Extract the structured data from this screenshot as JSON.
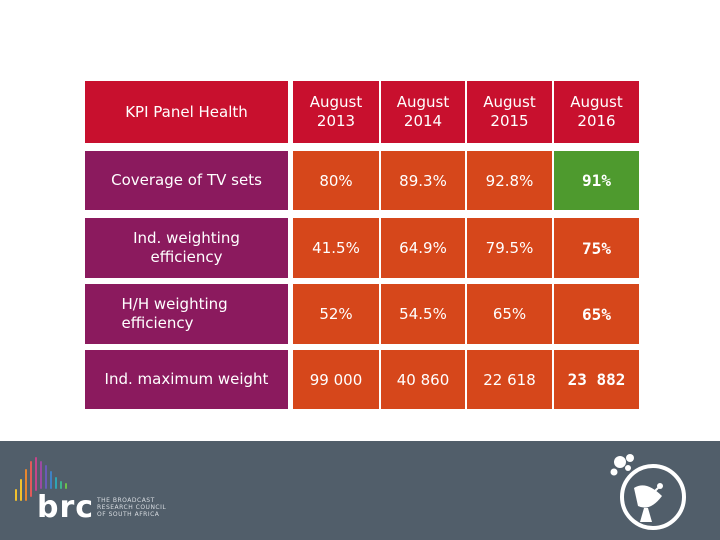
{
  "table": {
    "header": {
      "label": "KPI Panel Health",
      "columns": [
        {
          "line1": "August",
          "line2": "2013"
        },
        {
          "line1": "August",
          "line2": "2014"
        },
        {
          "line1": "August",
          "line2": "2015"
        },
        {
          "line1": "August",
          "line2": "2016"
        }
      ]
    },
    "rows": [
      {
        "label": "Coverage of TV sets",
        "values": [
          "80%",
          "89.3%",
          "92.8%",
          "91%"
        ]
      },
      {
        "label": "Ind. weighting efficiency",
        "values": [
          "41.5%",
          "64.9%",
          "79.5%",
          "75%"
        ]
      },
      {
        "label": "H/H weighting efficiency",
        "values": [
          "52%",
          "54.5%",
          "65%",
          "65%"
        ]
      },
      {
        "label": "Ind. maximum weight",
        "values": [
          "99 000",
          "40 860",
          "22 618",
          "23 882"
        ]
      }
    ]
  },
  "colors": {
    "header_red": "#c8102e",
    "row_purple": "#8b1a5e",
    "value_orange": "#d6471b",
    "value_green": "#4e9a2e",
    "footer_bg": "#515e6a"
  },
  "footer": {
    "logo_text": "brc",
    "logo_subtext": [
      "THE BROADCAST",
      "RESEARCH COUNCIL",
      "OF SOUTH AFRICA"
    ],
    "icon": "satellite-dish-icon"
  }
}
